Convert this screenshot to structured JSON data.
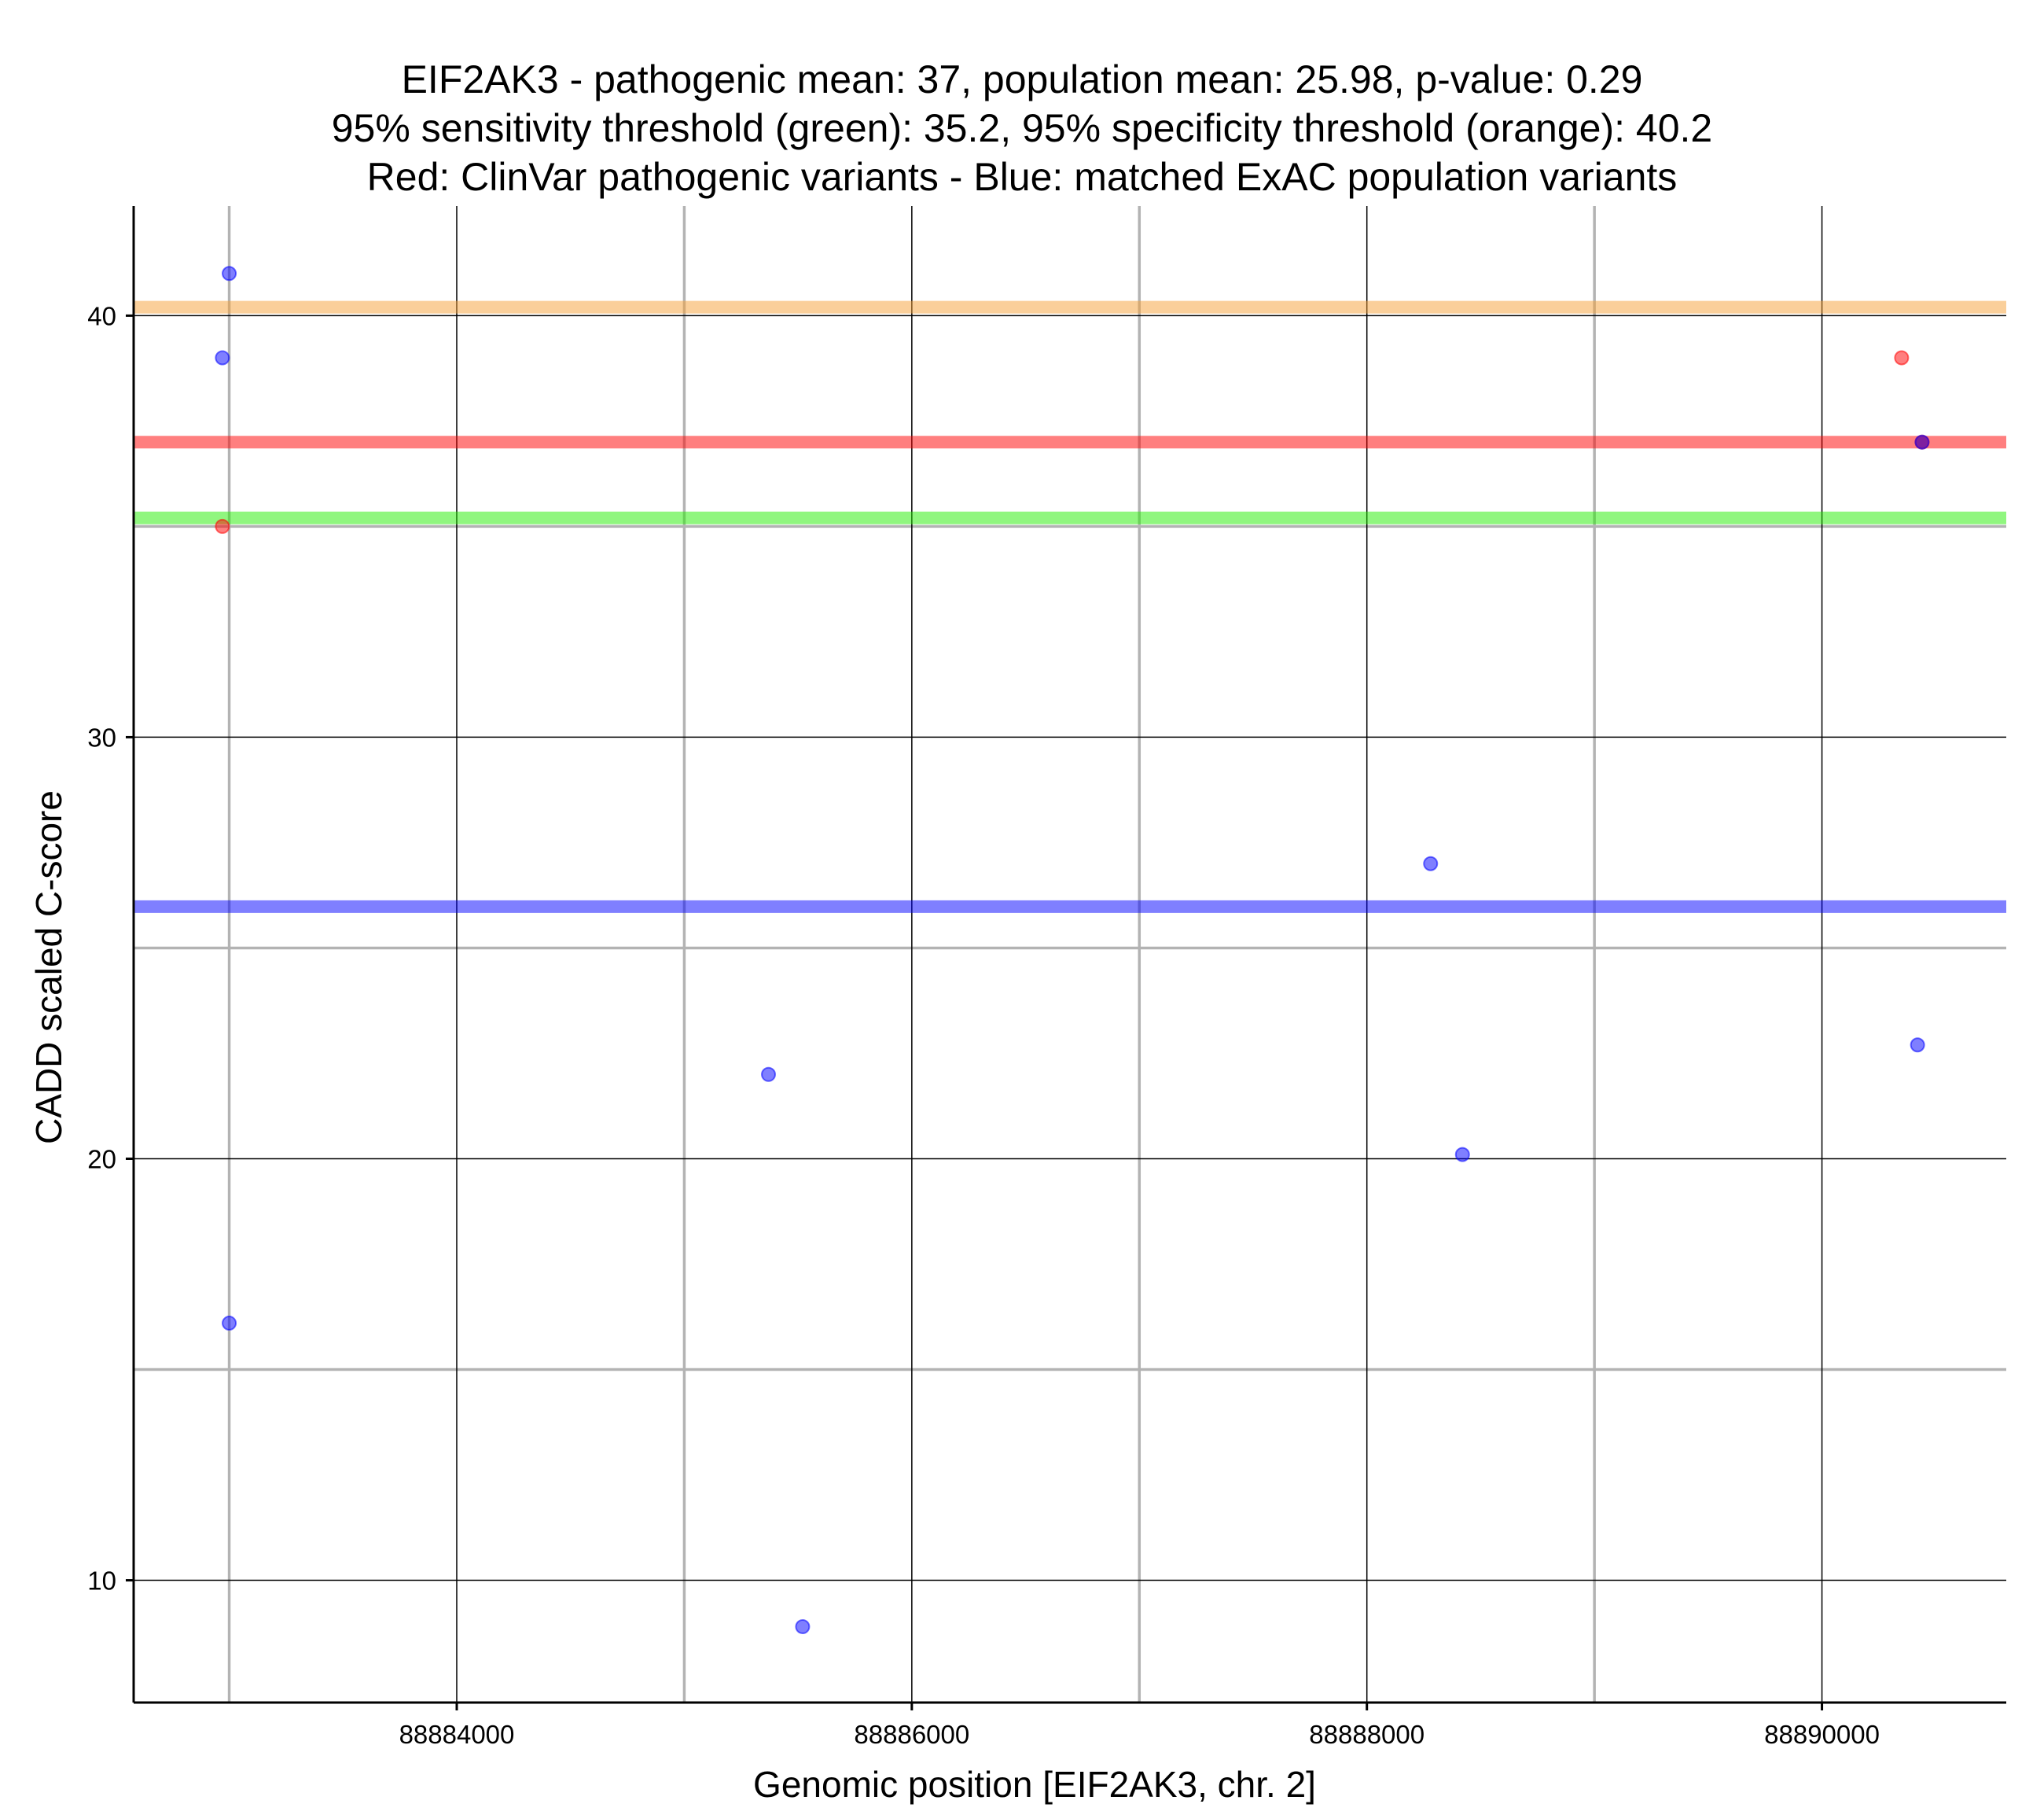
{
  "chart_data": {
    "type": "scatter",
    "title_lines": [
      "EIF2AK3 - pathogenic mean: 37, population mean: 25.98, p-value: 0.29",
      "95% sensitivity threshold (green): 35.2, 95% specificity threshold (orange): 40.2",
      "Red: ClinVar pathogenic variants - Blue: matched ExAC population variants"
    ],
    "xlabel": "Genomic position [EIF2AK3, chr. 2]",
    "ylabel": "CADD scaled C-score",
    "xlim": [
      88882580,
      88890810
    ],
    "ylim": [
      7.1,
      42.6
    ],
    "x_major_ticks": [
      88884000,
      88886000,
      88888000,
      88890000
    ],
    "x_tick_labels": [
      "88884000",
      "88886000",
      "88888000",
      "88890000"
    ],
    "x_minor_gridlines": [
      88883000,
      88885000,
      88887000,
      88889000
    ],
    "y_major_ticks": [
      10,
      20,
      30,
      40
    ],
    "y_tick_labels": [
      "10",
      "20",
      "30",
      "40"
    ],
    "y_minor_gridlines": [
      15,
      25,
      35
    ],
    "reference_lines": [
      {
        "name": "specificity-threshold",
        "value": 40.2,
        "color": "#F6A035"
      },
      {
        "name": "pathogenic-mean",
        "value": 37,
        "color": "#FF0000"
      },
      {
        "name": "sensitivity-threshold",
        "value": 35.2,
        "color": "#22EE00"
      },
      {
        "name": "population-mean",
        "value": 25.98,
        "color": "#0000FF"
      }
    ],
    "series": [
      {
        "name": "ClinVar pathogenic variants",
        "color": "#FF0000",
        "points": [
          [
            88882970,
            35
          ],
          [
            88890350,
            39
          ],
          [
            88890440,
            37
          ]
        ]
      },
      {
        "name": "matched ExAC population variants",
        "color": "#0000FF",
        "points": [
          [
            88883000,
            41
          ],
          [
            88882970,
            39
          ],
          [
            88883000,
            16.1
          ],
          [
            88885370,
            22
          ],
          [
            88885520,
            8.9
          ],
          [
            88888280,
            27
          ],
          [
            88888420,
            20.1
          ],
          [
            88890420,
            22.7
          ],
          [
            88890440,
            37
          ]
        ]
      }
    ]
  }
}
